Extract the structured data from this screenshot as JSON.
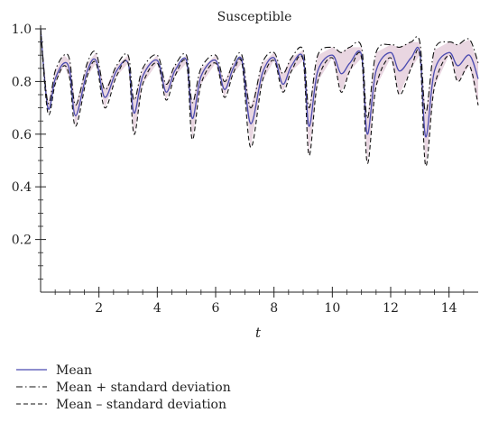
{
  "chart_data": {
    "type": "line",
    "title": "Susceptible",
    "xlabel": "t",
    "ylabel": "",
    "xlim": [
      0,
      15
    ],
    "ylim": [
      0,
      1.0
    ],
    "x_ticks": [
      "2",
      "4",
      "6",
      "8",
      "10",
      "12",
      "14"
    ],
    "y_ticks": [
      "0.2",
      "0.4",
      "0.6",
      "0.8",
      "1.0"
    ],
    "grid": false,
    "legend_position": "bottom-left",
    "band_color": "#e9d6e1",
    "mean_color": "#4b4bb0",
    "sd_color": "#111111",
    "series": [
      {
        "name": "Mean",
        "style": "solid",
        "x": [
          0,
          0.25,
          0.5,
          0.8,
          1.0,
          1.2,
          1.6,
          1.9,
          2.2,
          2.6,
          3.0,
          3.2,
          3.5,
          4.0,
          4.3,
          4.6,
          5.0,
          5.2,
          5.5,
          6.0,
          6.3,
          6.6,
          6.9,
          7.2,
          7.6,
          8.0,
          8.3,
          8.6,
          9.0,
          9.2,
          9.5,
          10.0,
          10.3,
          10.6,
          11.0,
          11.2,
          11.5,
          12.0,
          12.3,
          12.7,
          13.0,
          13.2,
          13.5,
          14.0,
          14.3,
          14.7,
          15.0
        ],
        "values": [
          1.0,
          0.7,
          0.81,
          0.87,
          0.84,
          0.67,
          0.84,
          0.88,
          0.74,
          0.84,
          0.87,
          0.68,
          0.82,
          0.88,
          0.76,
          0.84,
          0.88,
          0.66,
          0.82,
          0.88,
          0.77,
          0.85,
          0.88,
          0.64,
          0.83,
          0.89,
          0.79,
          0.86,
          0.89,
          0.63,
          0.84,
          0.9,
          0.83,
          0.87,
          0.9,
          0.6,
          0.84,
          0.91,
          0.84,
          0.89,
          0.91,
          0.59,
          0.84,
          0.91,
          0.86,
          0.9,
          0.81
        ]
      },
      {
        "name": "Mean + standard deviation",
        "style": "dashdot",
        "x": [
          0,
          0.25,
          0.5,
          0.8,
          1.0,
          1.2,
          1.6,
          1.9,
          2.2,
          2.6,
          3.0,
          3.2,
          3.5,
          4.0,
          4.3,
          4.6,
          5.0,
          5.2,
          5.5,
          6.0,
          6.3,
          6.6,
          6.9,
          7.2,
          7.6,
          8.0,
          8.3,
          8.6,
          9.0,
          9.2,
          9.5,
          10.0,
          10.3,
          10.6,
          11.0,
          11.2,
          11.5,
          12.0,
          12.3,
          12.7,
          13.0,
          13.2,
          13.5,
          14.0,
          14.3,
          14.7,
          15.0
        ],
        "values": [
          1.0,
          0.72,
          0.84,
          0.9,
          0.88,
          0.71,
          0.87,
          0.91,
          0.77,
          0.86,
          0.9,
          0.73,
          0.85,
          0.9,
          0.79,
          0.86,
          0.9,
          0.72,
          0.85,
          0.9,
          0.8,
          0.87,
          0.9,
          0.7,
          0.87,
          0.91,
          0.83,
          0.89,
          0.92,
          0.7,
          0.9,
          0.93,
          0.91,
          0.93,
          0.93,
          0.66,
          0.91,
          0.94,
          0.93,
          0.95,
          0.95,
          0.68,
          0.92,
          0.95,
          0.94,
          0.96,
          0.87
        ]
      },
      {
        "name": "Mean – standard deviation",
        "style": "dashed",
        "x": [
          0,
          0.25,
          0.5,
          0.8,
          1.0,
          1.2,
          1.6,
          1.9,
          2.2,
          2.6,
          3.0,
          3.2,
          3.5,
          4.0,
          4.3,
          4.6,
          5.0,
          5.2,
          5.5,
          6.0,
          6.3,
          6.6,
          6.9,
          7.2,
          7.6,
          8.0,
          8.3,
          8.6,
          9.0,
          9.2,
          9.5,
          10.0,
          10.3,
          10.6,
          11.0,
          11.2,
          11.5,
          12.0,
          12.3,
          12.7,
          13.0,
          13.2,
          13.5,
          14.0,
          14.3,
          14.7,
          15.0
        ],
        "values": [
          1.0,
          0.68,
          0.79,
          0.86,
          0.81,
          0.63,
          0.82,
          0.87,
          0.7,
          0.82,
          0.87,
          0.6,
          0.79,
          0.87,
          0.73,
          0.82,
          0.87,
          0.58,
          0.79,
          0.87,
          0.74,
          0.83,
          0.87,
          0.55,
          0.8,
          0.88,
          0.76,
          0.84,
          0.88,
          0.52,
          0.8,
          0.89,
          0.76,
          0.84,
          0.89,
          0.49,
          0.78,
          0.89,
          0.75,
          0.85,
          0.9,
          0.48,
          0.78,
          0.9,
          0.8,
          0.86,
          0.71
        ]
      }
    ]
  }
}
